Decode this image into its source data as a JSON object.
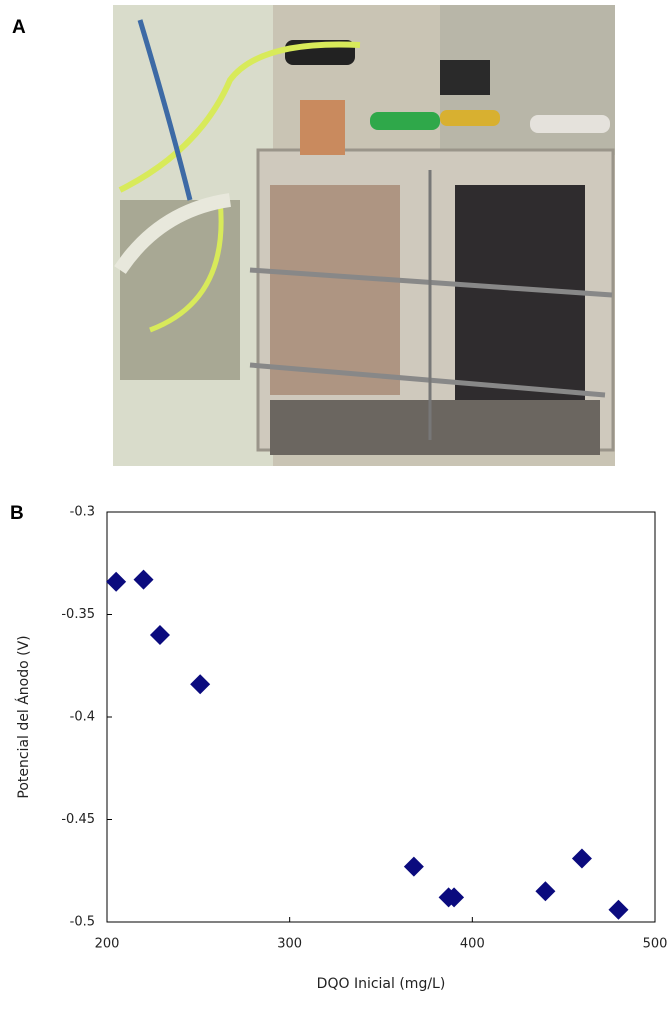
{
  "panel_labels": [
    "A",
    "B"
  ],
  "chart_data": {
    "type": "scatter",
    "x_label": "DQO Inicial (mg/L)",
    "y_label": "Potencial del Ánodo (V)",
    "x": [
      205,
      220,
      229,
      251,
      368,
      387,
      390,
      440,
      460,
      480
    ],
    "values": [
      -0.334,
      -0.333,
      -0.36,
      -0.384,
      -0.473,
      -0.488,
      -0.488,
      -0.485,
      -0.469,
      -0.494
    ],
    "color": "#0b0b7e",
    "xlim": [
      200,
      500
    ],
    "xticks": [
      200,
      300,
      400,
      500
    ],
    "ylim": [
      -0.5,
      -0.3
    ],
    "yticks": [
      -0.3,
      -0.35,
      -0.4,
      -0.45,
      -0.5
    ],
    "grid": false
  }
}
